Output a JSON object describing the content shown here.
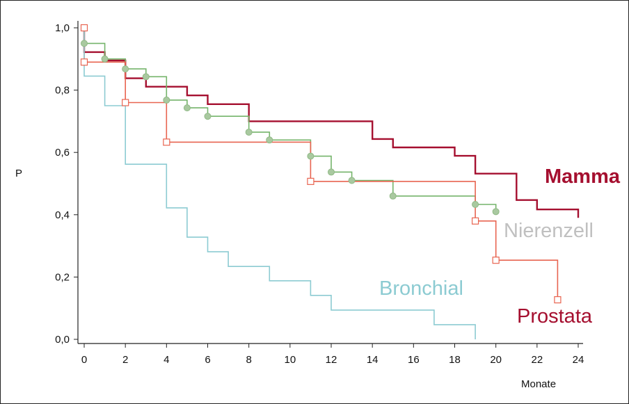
{
  "chart_data": {
    "type": "line",
    "subtype": "kaplan-meier step curves",
    "title": "",
    "xlabel": "Monate",
    "ylabel": "P",
    "xlim": [
      0,
      24
    ],
    "ylim": [
      0,
      1
    ],
    "x_ticks": [
      0,
      2,
      4,
      6,
      8,
      10,
      12,
      14,
      16,
      18,
      20,
      22,
      24
    ],
    "y_ticks": [
      0,
      0.2,
      0.4,
      0.6,
      0.8,
      1.0
    ],
    "y_tick_labels": [
      "0,0",
      "0,2",
      "0,4",
      "0,6",
      "0,8",
      "1,0"
    ],
    "grid": false,
    "legend": "inline labels next to curves",
    "series": [
      {
        "name": "Mamma",
        "color": "#a50f2f",
        "marker": "none",
        "points": [
          [
            0,
            1.0
          ],
          [
            0,
            0.922
          ],
          [
            1,
            0.922
          ],
          [
            1,
            0.895
          ],
          [
            2,
            0.895
          ],
          [
            2,
            0.838
          ],
          [
            3,
            0.838
          ],
          [
            3,
            0.811
          ],
          [
            5,
            0.811
          ],
          [
            5,
            0.783
          ],
          [
            6,
            0.783
          ],
          [
            6,
            0.755
          ],
          [
            8,
            0.755
          ],
          [
            8,
            0.7
          ],
          [
            14,
            0.7
          ],
          [
            14,
            0.643
          ],
          [
            15,
            0.643
          ],
          [
            15,
            0.616
          ],
          [
            18,
            0.616
          ],
          [
            18,
            0.589
          ],
          [
            19,
            0.589
          ],
          [
            19,
            0.532
          ],
          [
            21,
            0.532
          ],
          [
            21,
            0.447
          ],
          [
            22,
            0.447
          ],
          [
            22,
            0.417
          ],
          [
            24,
            0.417
          ],
          [
            24,
            0.39
          ]
        ]
      },
      {
        "name": "Nierenzell",
        "color": "#74b46a",
        "marker": "circle",
        "points": [
          [
            0,
            1.0
          ],
          [
            0,
            0.95
          ],
          [
            1,
            0.95
          ],
          [
            1,
            0.9
          ],
          [
            2,
            0.9
          ],
          [
            2,
            0.868
          ],
          [
            3,
            0.868
          ],
          [
            3,
            0.843
          ],
          [
            4,
            0.843
          ],
          [
            4,
            0.768
          ],
          [
            5,
            0.768
          ],
          [
            5,
            0.743
          ],
          [
            6,
            0.743
          ],
          [
            6,
            0.716
          ],
          [
            8,
            0.716
          ],
          [
            8,
            0.665
          ],
          [
            9,
            0.665
          ],
          [
            9,
            0.64
          ],
          [
            11,
            0.64
          ],
          [
            11,
            0.588
          ],
          [
            12,
            0.588
          ],
          [
            12,
            0.537
          ],
          [
            13,
            0.537
          ],
          [
            13,
            0.51
          ],
          [
            15,
            0.51
          ],
          [
            15,
            0.46
          ],
          [
            19,
            0.46
          ],
          [
            19,
            0.433
          ],
          [
            20,
            0.433
          ],
          [
            20,
            0.41
          ]
        ],
        "marker_points": [
          [
            0,
            0.95
          ],
          [
            1,
            0.9
          ],
          [
            2,
            0.868
          ],
          [
            3,
            0.843
          ],
          [
            4,
            0.768
          ],
          [
            5,
            0.743
          ],
          [
            6,
            0.716
          ],
          [
            8,
            0.665
          ],
          [
            9,
            0.64
          ],
          [
            11,
            0.588
          ],
          [
            12,
            0.537
          ],
          [
            13,
            0.51
          ],
          [
            15,
            0.46
          ],
          [
            19,
            0.433
          ],
          [
            20,
            0.41
          ]
        ]
      },
      {
        "name": "Prostata",
        "color": "#e86450",
        "marker": "square",
        "points": [
          [
            0,
            1.0
          ],
          [
            0,
            0.89
          ],
          [
            2,
            0.89
          ],
          [
            2,
            0.76
          ],
          [
            4,
            0.76
          ],
          [
            4,
            0.633
          ],
          [
            11,
            0.633
          ],
          [
            11,
            0.507
          ],
          [
            19,
            0.507
          ],
          [
            19,
            0.38
          ],
          [
            20,
            0.38
          ],
          [
            20,
            0.254
          ],
          [
            23,
            0.254
          ],
          [
            23,
            0.127
          ]
        ],
        "marker_points": [
          [
            0,
            1.0
          ],
          [
            0,
            0.89
          ],
          [
            2,
            0.76
          ],
          [
            4,
            0.633
          ],
          [
            11,
            0.507
          ],
          [
            19,
            0.38
          ],
          [
            20,
            0.254
          ],
          [
            23,
            0.127
          ]
        ]
      },
      {
        "name": "Bronchial",
        "color": "#8ccbd2",
        "marker": "none",
        "points": [
          [
            0,
            1.0
          ],
          [
            0,
            0.845
          ],
          [
            1,
            0.845
          ],
          [
            1,
            0.75
          ],
          [
            2,
            0.75
          ],
          [
            2,
            0.562
          ],
          [
            4,
            0.562
          ],
          [
            4,
            0.422
          ],
          [
            5,
            0.422
          ],
          [
            5,
            0.328
          ],
          [
            6,
            0.328
          ],
          [
            6,
            0.281
          ],
          [
            7,
            0.281
          ],
          [
            7,
            0.234
          ],
          [
            9,
            0.234
          ],
          [
            9,
            0.188
          ],
          [
            11,
            0.188
          ],
          [
            11,
            0.141
          ],
          [
            12,
            0.141
          ],
          [
            12,
            0.094
          ],
          [
            17,
            0.094
          ],
          [
            17,
            0.047
          ],
          [
            19,
            0.047
          ],
          [
            19,
            0.0
          ]
        ]
      }
    ],
    "labels": [
      {
        "key": "mamma",
        "text": "Mamma",
        "color": "#a50f2f",
        "bold": true
      },
      {
        "key": "nierenzell",
        "text": "Nierenzell",
        "color": "#c0c0c0",
        "bold": false
      },
      {
        "key": "bronchial",
        "text": "Bronchial",
        "color": "#8ccbd2",
        "bold": false
      },
      {
        "key": "prostata",
        "text": "Prostata",
        "color": "#a50f2f",
        "bold": false
      }
    ]
  }
}
